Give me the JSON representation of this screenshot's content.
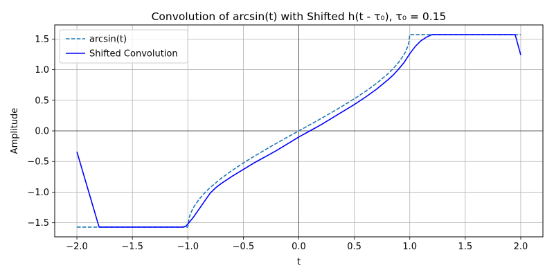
{
  "chart_data": {
    "type": "line",
    "title": "Convolution of arcsin(t) with Shifted h(t - τ₀), τ₀ = 0.15",
    "xlabel": "t",
    "ylabel": "Amplitude",
    "xlim": [
      -2.2,
      2.2
    ],
    "ylim": [
      -1.73,
      1.73
    ],
    "x_ticks": [
      -2.0,
      -1.5,
      -1.0,
      -0.5,
      0.0,
      0.5,
      1.0,
      1.5,
      2.0
    ],
    "x_tick_labels": [
      "−2.0",
      "−1.5",
      "−1.0",
      "−0.5",
      "0.0",
      "0.5",
      "1.0",
      "1.5",
      "2.0"
    ],
    "y_ticks": [
      -1.5,
      -1.0,
      -0.5,
      0.0,
      0.5,
      1.0,
      1.5
    ],
    "y_tick_labels": [
      "−1.5",
      "−1.0",
      "−0.5",
      "0.0",
      "0.5",
      "1.0",
      "1.5"
    ],
    "grid": true,
    "zero_lines": true,
    "legend_position": "upper-left",
    "series": [
      {
        "name": "arcsin(t)",
        "color": "#1f77b4",
        "style": "dashed",
        "x": [
          -2.0,
          -1.0,
          -1.0,
          -0.99,
          -0.98,
          -0.96,
          -0.94,
          -0.9,
          -0.85,
          -0.8,
          -0.7,
          -0.6,
          -0.5,
          -0.4,
          -0.3,
          -0.2,
          -0.1,
          0.0,
          0.1,
          0.2,
          0.3,
          0.4,
          0.5,
          0.6,
          0.7,
          0.8,
          0.85,
          0.9,
          0.94,
          0.96,
          0.98,
          0.99,
          1.0,
          1.0,
          2.0
        ],
        "y": [
          -1.571,
          -1.571,
          -1.571,
          -1.429,
          -1.371,
          -1.287,
          -1.223,
          -1.12,
          -1.016,
          -0.927,
          -0.775,
          -0.644,
          -0.524,
          -0.412,
          -0.305,
          -0.201,
          -0.1,
          0.0,
          0.1,
          0.201,
          0.305,
          0.412,
          0.524,
          0.644,
          0.775,
          0.927,
          1.016,
          1.12,
          1.223,
          1.287,
          1.371,
          1.429,
          1.571,
          1.571,
          1.571
        ]
      },
      {
        "name": "Shifted Convolution",
        "color": "#0000ff",
        "style": "solid",
        "x": [
          -2.0,
          -1.8,
          -1.3,
          -1.05,
          -1.02,
          -1.0,
          -0.95,
          -0.9,
          -0.85,
          -0.8,
          -0.75,
          -0.7,
          -0.6,
          -0.5,
          -0.4,
          -0.3,
          -0.2,
          -0.1,
          0.0,
          0.1,
          0.2,
          0.3,
          0.4,
          0.5,
          0.6,
          0.7,
          0.8,
          0.85,
          0.9,
          0.95,
          1.0,
          1.05,
          1.1,
          1.15,
          1.2,
          1.5,
          1.95,
          2.0
        ],
        "y": [
          -0.34,
          -1.571,
          -1.571,
          -1.571,
          -1.56,
          -1.52,
          -1.41,
          -1.28,
          -1.15,
          -1.02,
          -0.93,
          -0.86,
          -0.74,
          -0.63,
          -0.52,
          -0.42,
          -0.32,
          -0.21,
          -0.1,
          0.0,
          0.1,
          0.21,
          0.32,
          0.43,
          0.55,
          0.68,
          0.83,
          0.91,
          1.01,
          1.12,
          1.26,
          1.38,
          1.47,
          1.53,
          1.571,
          1.571,
          1.571,
          1.24
        ]
      }
    ]
  }
}
